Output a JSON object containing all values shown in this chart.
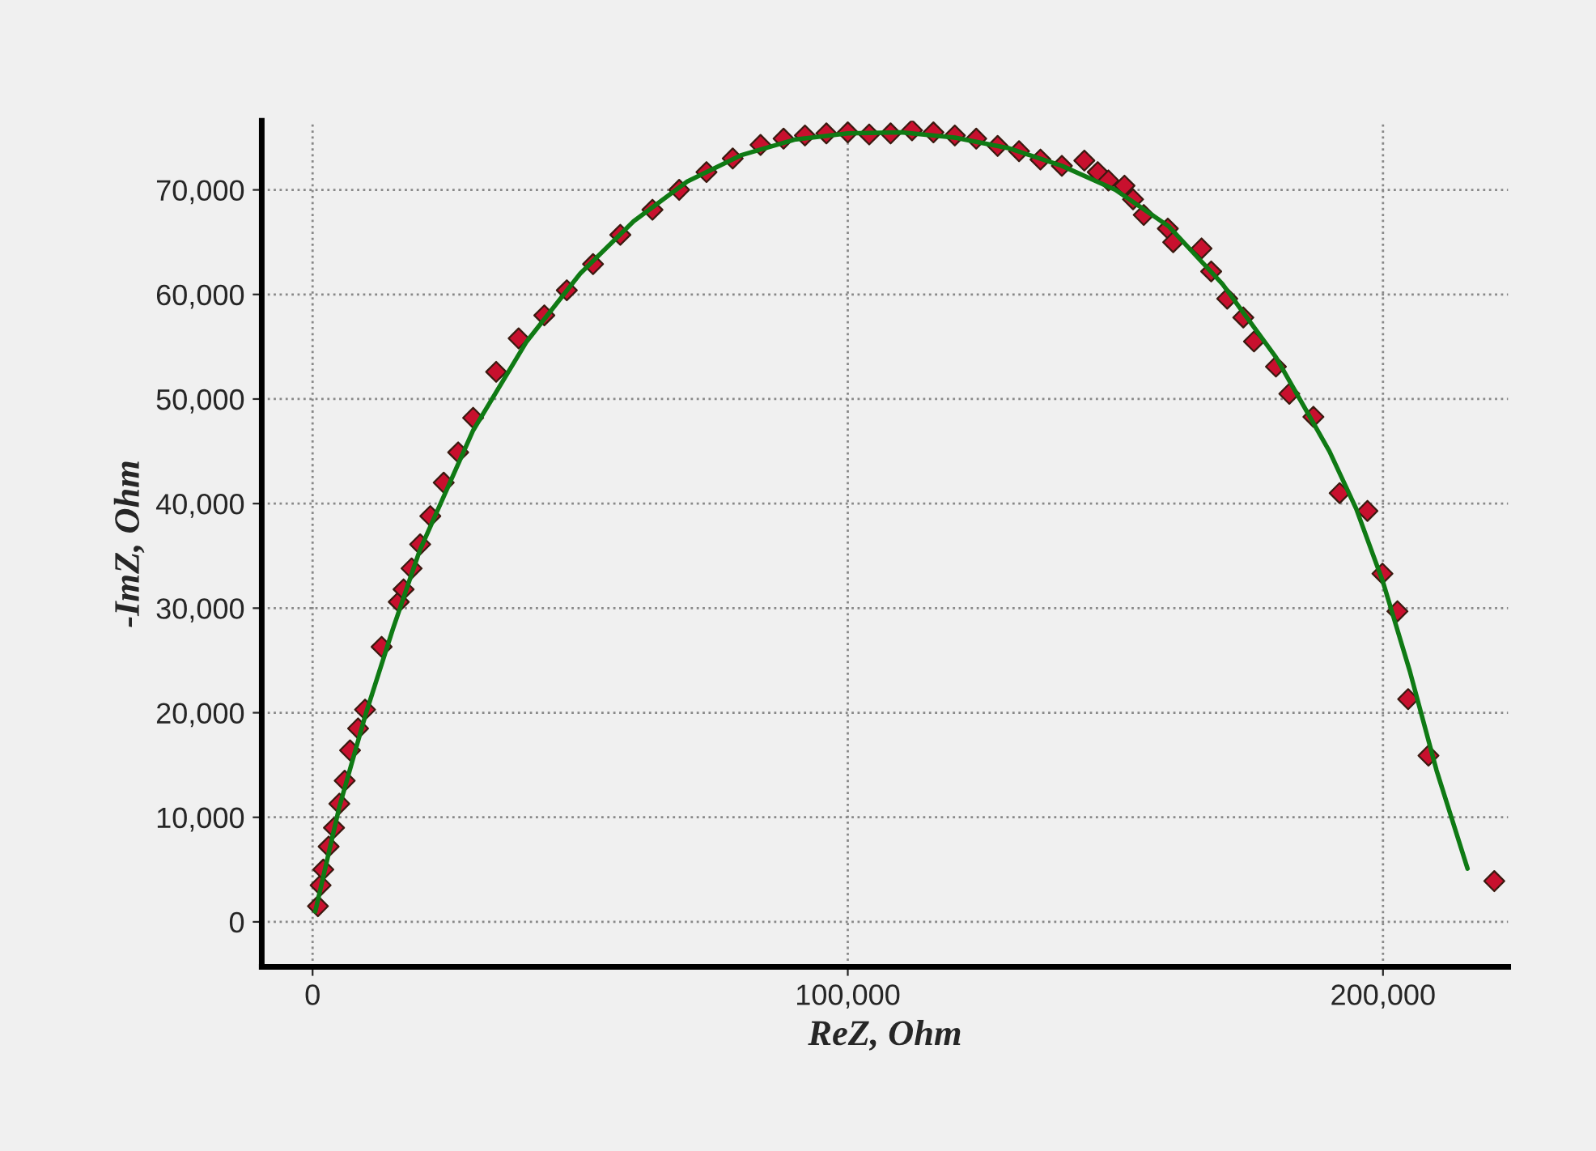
{
  "chart_data": {
    "type": "scatter",
    "xlabel": "ReZ, Ohm",
    "ylabel": "-ImZ, Ohm",
    "xlim": [
      -9500,
      223400
    ],
    "ylim": [
      -4300,
      76600
    ],
    "xticks": [
      {
        "value": 0,
        "label": "0"
      },
      {
        "value": 100000,
        "label": "100,000"
      },
      {
        "value": 200000,
        "label": "200,000"
      }
    ],
    "yticks": [
      {
        "value": 0,
        "label": "0"
      },
      {
        "value": 10000,
        "label": "10,000"
      },
      {
        "value": 20000,
        "label": "20,000"
      },
      {
        "value": 30000,
        "label": "30,000"
      },
      {
        "value": 40000,
        "label": "40,000"
      },
      {
        "value": 50000,
        "label": "50,000"
      },
      {
        "value": 60000,
        "label": "60,000"
      },
      {
        "value": 70000,
        "label": "70,000"
      }
    ],
    "grid": true,
    "legend": false,
    "series": [
      {
        "marker": "diamond",
        "color": "#c8102e",
        "x": [
          1000,
          1500,
          2000,
          3000,
          4000,
          5000,
          6000,
          7000,
          8500,
          9800,
          12900,
          16100,
          17000,
          18500,
          20100,
          22000,
          24500,
          27200,
          30000,
          34300,
          38500,
          43300,
          47500,
          52400,
          57500,
          63500,
          68500,
          73600,
          78500,
          83700,
          88000,
          92000,
          96000,
          100000,
          104000,
          108000,
          112000,
          116000,
          120000,
          124000,
          128000,
          132000,
          136000,
          140000,
          144200,
          146700,
          148700,
          151700,
          153300,
          155300,
          159800,
          160800,
          166100,
          167900,
          170900,
          173900,
          175900,
          180000,
          182500,
          187000,
          191900,
          197100,
          199900,
          202700,
          204700,
          208500,
          220800
        ],
        "values": [
          1500,
          3500,
          5000,
          7200,
          9000,
          11300,
          13500,
          16400,
          18500,
          20300,
          26300,
          30600,
          31800,
          33800,
          36100,
          38800,
          42000,
          44900,
          48200,
          52600,
          55800,
          58000,
          60400,
          62900,
          65700,
          68100,
          70000,
          71700,
          73000,
          74300,
          74900,
          75200,
          75400,
          75500,
          75300,
          75400,
          75700,
          75500,
          75200,
          74900,
          74200,
          73700,
          72900,
          72300,
          72800,
          71700,
          70900,
          70400,
          69100,
          67600,
          66300,
          65000,
          64400,
          62200,
          59600,
          57800,
          55500,
          53100,
          50500,
          48300,
          41000,
          39300,
          33300,
          29700,
          21300,
          15900,
          3900
        ]
      },
      {
        "type": "line",
        "marker": "none",
        "line_style": "solid",
        "color": "#0f7a14",
        "x": [
          500,
          5000,
          10000,
          15000,
          20000,
          30000,
          40000,
          50000,
          60000,
          70000,
          80000,
          90000,
          100000,
          110000,
          120000,
          130000,
          140000,
          150000,
          160000,
          170000,
          180000,
          190000,
          195000,
          200000,
          205000,
          210000,
          215800
        ],
        "values": [
          1000,
          11000,
          20000,
          28000,
          35500,
          47000,
          55500,
          62000,
          67000,
          70800,
          73300,
          74800,
          75400,
          75500,
          75000,
          74000,
          72300,
          70000,
          66500,
          61000,
          54000,
          45000,
          39500,
          32500,
          24000,
          14500,
          5100
        ]
      }
    ]
  }
}
